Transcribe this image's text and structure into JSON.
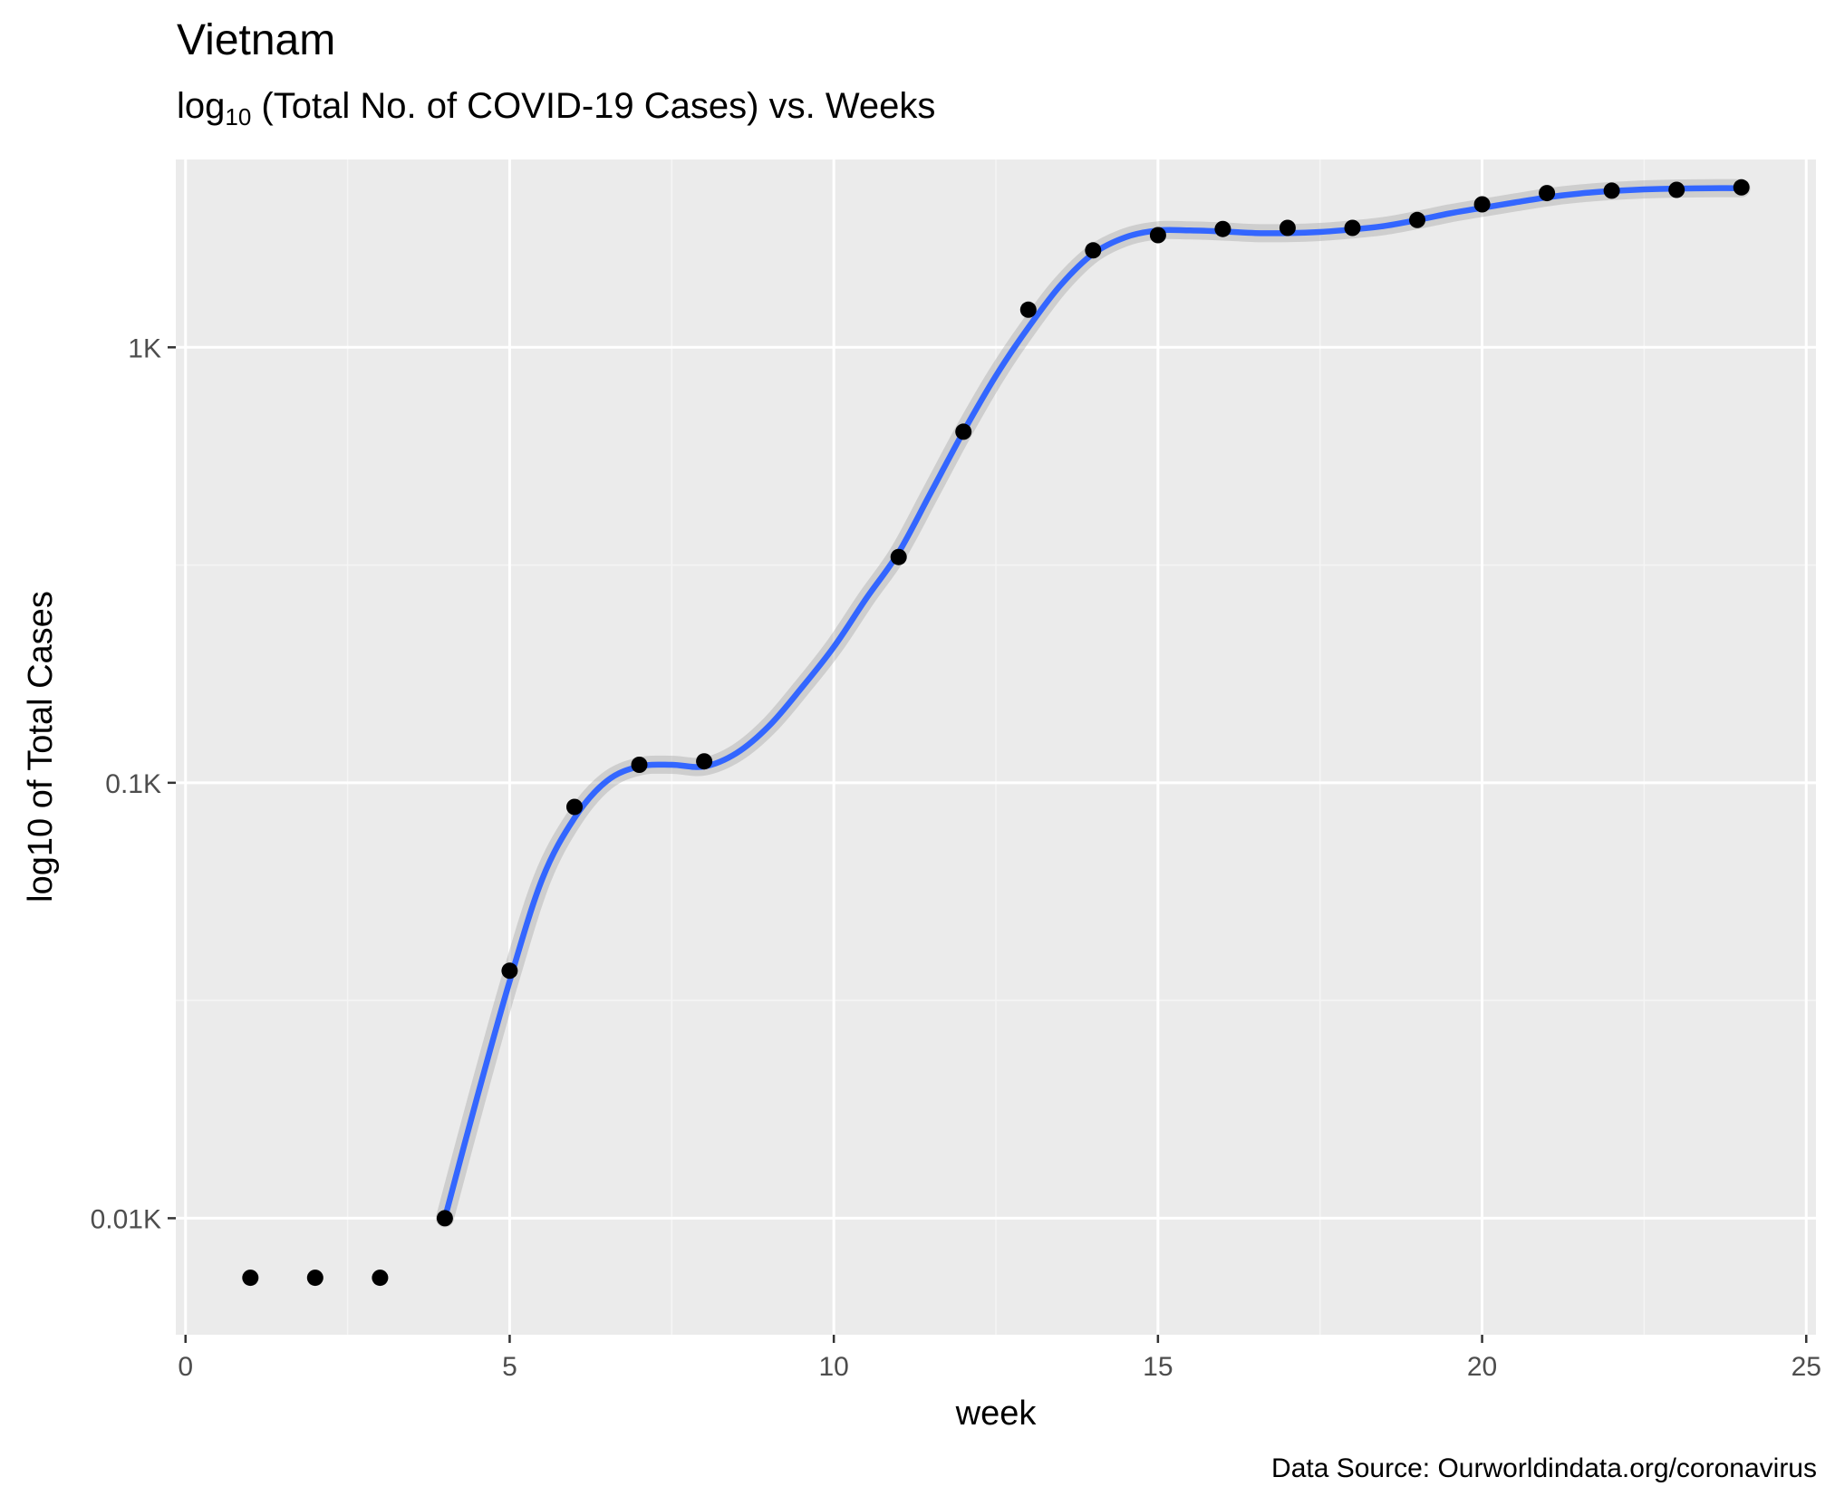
{
  "chart_data": {
    "type": "scatter",
    "title": "Vietnam",
    "subtitle": {
      "prefix": "log",
      "subscript": "10",
      "suffix": " (Total No. of COVID-19 Cases) vs. Weeks"
    },
    "xlabel": "week",
    "ylabel": "log10 of Total Cases",
    "caption": "Data Source: Ourworldindata.org/coronavirus",
    "x_scale": "linear",
    "y_scale": "log10",
    "xlim": [
      -0.15,
      25.15
    ],
    "ylim": [
      5.4,
      2700
    ],
    "x_ticks": [
      0,
      5,
      10,
      15,
      20,
      25
    ],
    "x_tick_labels": [
      "0",
      "5",
      "10",
      "15",
      "20",
      "25"
    ],
    "y_ticks": [
      10,
      100,
      1000
    ],
    "y_tick_labels": [
      "0.01K",
      "0.1K",
      "1K"
    ],
    "grid": true,
    "legend": "none",
    "colors": {
      "panel_background": "#ebebeb",
      "grid_major": "#ffffff",
      "grid_minor": "#f5f5f5",
      "points": "#000000",
      "smooth_line": "#3366ff",
      "confidence_band": "#999999"
    },
    "series": [
      {
        "type": "points",
        "x": [
          1,
          2,
          3,
          4,
          5,
          6,
          7,
          8,
          11,
          12,
          13,
          14,
          15,
          16,
          17,
          18,
          19,
          20,
          21,
          22,
          23,
          24
        ],
        "y": [
          7.3,
          7.3,
          7.3,
          10,
          37,
          88,
          110,
          112,
          330,
          640,
          1220,
          1670,
          1810,
          1870,
          1880,
          1880,
          1960,
          2130,
          2260,
          2290,
          2300,
          2330
        ]
      },
      {
        "type": "smooth",
        "x": [
          4,
          4.5,
          5,
          5.5,
          6,
          6.5,
          7,
          7.5,
          8,
          8.5,
          9,
          9.5,
          10,
          10.5,
          11,
          11.5,
          12,
          12.5,
          13,
          13.5,
          14,
          14.5,
          15,
          15.5,
          16,
          16.5,
          17,
          17.5,
          18,
          18.5,
          19,
          19.5,
          20,
          20.5,
          21,
          21.5,
          22,
          22.5,
          23,
          23.5,
          24
        ],
        "y": [
          10,
          19,
          35,
          60,
          83,
          101,
          109,
          110,
          109,
          117,
          135,
          165,
          205,
          265,
          338,
          465,
          640,
          860,
          1110,
          1390,
          1640,
          1790,
          1855,
          1855,
          1845,
          1830,
          1830,
          1840,
          1865,
          1900,
          1960,
          2030,
          2090,
          2150,
          2210,
          2255,
          2285,
          2305,
          2315,
          2320,
          2320
        ]
      }
    ]
  }
}
